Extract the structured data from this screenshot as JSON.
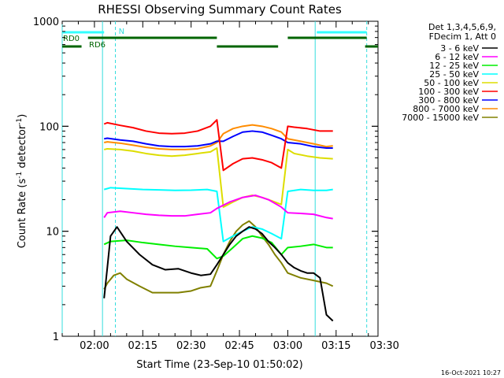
{
  "chart_data": {
    "type": "line",
    "title": "RHESSI Observing Summary Count Rates",
    "xlabel": "Start Time (23-Sep-10 01:50:02)",
    "ylabel_main": "Count Rate (s",
    "ylabel_sup1": "-1",
    "ylabel_mid": " detector",
    "ylabel_sup2": "-1",
    "ylabel_end": ")",
    "y_scale": "log",
    "ylim": [
      1,
      1000
    ],
    "xlim_minutes": [
      0,
      98
    ],
    "xticks": [
      {
        "label": "02:00",
        "minute": 10
      },
      {
        "label": "02:15",
        "minute": 25
      },
      {
        "label": "02:30",
        "minute": 40
      },
      {
        "label": "02:45",
        "minute": 55
      },
      {
        "label": "03:00",
        "minute": 70
      },
      {
        "label": "03:15",
        "minute": 85
      },
      {
        "label": "03:30",
        "minute": 100
      }
    ],
    "yticks": [
      {
        "label": "1",
        "value": 1
      },
      {
        "label": "10",
        "value": 10
      },
      {
        "label": "100",
        "value": 100
      },
      {
        "label": "1000",
        "value": 1000
      }
    ],
    "legend_header": [
      "Det 1,3,4,5,6,9,",
      "FDecim 1, Att 0"
    ],
    "series": [
      {
        "name": "3 - 6 keV",
        "color": "#000000",
        "x": [
          13,
          14,
          15,
          17,
          20,
          24,
          28,
          32,
          36,
          40,
          43,
          46,
          48,
          50,
          52,
          54,
          56,
          58,
          60,
          62,
          64,
          66,
          68,
          70,
          72,
          74,
          76,
          78,
          80,
          82,
          84
        ],
        "values": [
          2.3,
          4.5,
          9,
          11,
          8,
          6,
          4.8,
          4.3,
          4.4,
          4,
          3.8,
          3.9,
          4.8,
          6,
          7.5,
          9,
          10,
          11,
          10.5,
          9.5,
          8,
          7,
          6,
          5,
          4.5,
          4.2,
          4.0,
          4.0,
          3.6,
          1.6,
          1.4
        ]
      },
      {
        "name": "6 - 12 keV",
        "color": "#ff00ff",
        "x": [
          13,
          14,
          18,
          22,
          26,
          30,
          34,
          38,
          42,
          46,
          48,
          52,
          56,
          60,
          64,
          68,
          70,
          74,
          78,
          82,
          84
        ],
        "values": [
          13.5,
          15,
          15.5,
          15,
          14.5,
          14.2,
          14,
          14,
          14.5,
          15,
          16.5,
          19,
          21,
          22,
          20,
          17,
          15,
          14.8,
          14.5,
          13.5,
          13.2
        ]
      },
      {
        "name": "12 - 25 keV",
        "color": "#00ee00",
        "x": [
          13,
          15,
          20,
          25,
          30,
          35,
          40,
          45,
          48,
          50,
          53,
          56,
          59,
          62,
          65,
          68,
          70,
          74,
          78,
          82,
          84
        ],
        "values": [
          7.5,
          8.0,
          8.2,
          7.8,
          7.5,
          7.2,
          7.0,
          6.8,
          5.5,
          5.8,
          7.0,
          8.5,
          9.0,
          8.6,
          7.8,
          6.0,
          7.0,
          7.2,
          7.5,
          7.0,
          7.0
        ]
      },
      {
        "name": "25 - 50 keV",
        "color": "#00ffff",
        "x": [
          13,
          15,
          20,
          25,
          30,
          35,
          40,
          45,
          48,
          50,
          53,
          56,
          59,
          62,
          65,
          68,
          70,
          74,
          78,
          82,
          84
        ],
        "values": [
          25,
          26,
          25.5,
          25,
          24.8,
          24.5,
          24.6,
          25,
          24,
          8,
          9,
          10,
          11,
          10.5,
          9.5,
          8.5,
          24,
          25,
          24.5,
          24.5,
          25
        ]
      },
      {
        "name": "50 - 100 keV",
        "color": "#dddd00",
        "x": [
          13,
          14,
          18,
          22,
          26,
          30,
          34,
          38,
          42,
          46,
          48,
          50,
          53,
          56,
          59,
          62,
          65,
          68,
          70,
          72,
          76,
          80,
          84
        ],
        "values": [
          60,
          61,
          60,
          58,
          55,
          53,
          52,
          53,
          55,
          57,
          62,
          17,
          19,
          21,
          22,
          21,
          19.5,
          18,
          60,
          55,
          52,
          50,
          49
        ]
      },
      {
        "name": "100 - 300 keV",
        "color": "#ff0000",
        "x": [
          13,
          14,
          18,
          22,
          26,
          30,
          34,
          38,
          42,
          46,
          48,
          50,
          53,
          56,
          59,
          62,
          65,
          68,
          70,
          72,
          76,
          80,
          84
        ],
        "values": [
          105,
          108,
          102,
          97,
          90,
          86,
          85,
          86,
          90,
          100,
          115,
          38,
          44,
          49,
          50,
          48,
          45,
          40,
          100,
          98,
          95,
          90,
          90
        ]
      },
      {
        "name": "300 - 800 keV",
        "color": "#0000ff",
        "x": [
          13,
          14,
          18,
          22,
          26,
          30,
          34,
          38,
          42,
          46,
          48,
          50,
          53,
          56,
          59,
          62,
          65,
          68,
          70,
          74,
          78,
          82,
          84
        ],
        "values": [
          76,
          77,
          74,
          72,
          68,
          65,
          64,
          64,
          65,
          68,
          72,
          72,
          80,
          88,
          90,
          88,
          82,
          76,
          70,
          68,
          64,
          62,
          62
        ]
      },
      {
        "name": "800 - 7000 keV",
        "color": "#ff8c00",
        "x": [
          13,
          14,
          18,
          22,
          26,
          30,
          34,
          38,
          42,
          46,
          48,
          50,
          53,
          56,
          59,
          62,
          65,
          68,
          70,
          74,
          78,
          82,
          84
        ],
        "values": [
          70,
          71,
          69,
          66,
          63,
          61,
          60,
          60,
          61,
          65,
          70,
          85,
          95,
          100,
          103,
          100,
          95,
          88,
          76,
          72,
          68,
          64,
          65
        ]
      },
      {
        "name": "7000 - 15000 keV",
        "color": "#808000",
        "x": [
          13,
          14,
          16,
          18,
          20,
          24,
          28,
          32,
          36,
          40,
          43,
          46,
          48,
          50,
          52,
          54,
          56,
          58,
          60,
          62,
          64,
          66,
          68,
          70,
          74,
          78,
          82,
          84
        ],
        "values": [
          2.8,
          3.2,
          3.8,
          4.0,
          3.5,
          3.0,
          2.6,
          2.6,
          2.6,
          2.7,
          2.9,
          3.0,
          4.2,
          6.0,
          8.0,
          10.0,
          11.5,
          12.5,
          11.0,
          9.0,
          7.5,
          6.0,
          5.0,
          4.0,
          3.6,
          3.4,
          3.2,
          3.0
        ]
      }
    ],
    "annotations": {
      "attenuator_label": "N",
      "rate_labels": [
        "RD0",
        "RD6"
      ],
      "cyan_vertical_minutes": [
        0,
        12.5,
        16.5,
        78.5,
        94.5
      ],
      "cyan_bar_segments": [
        [
          0,
          13
        ],
        [
          79,
          94.5
        ]
      ],
      "green_bar_upper_segments": [
        [
          8,
          48
        ],
        [
          70,
          94.5
        ]
      ],
      "green_bar_lower_segments": [
        [
          0,
          6
        ],
        [
          48,
          67
        ],
        [
          94,
          98
        ]
      ]
    },
    "footer_date": "16-Oct-2021 10:27"
  }
}
